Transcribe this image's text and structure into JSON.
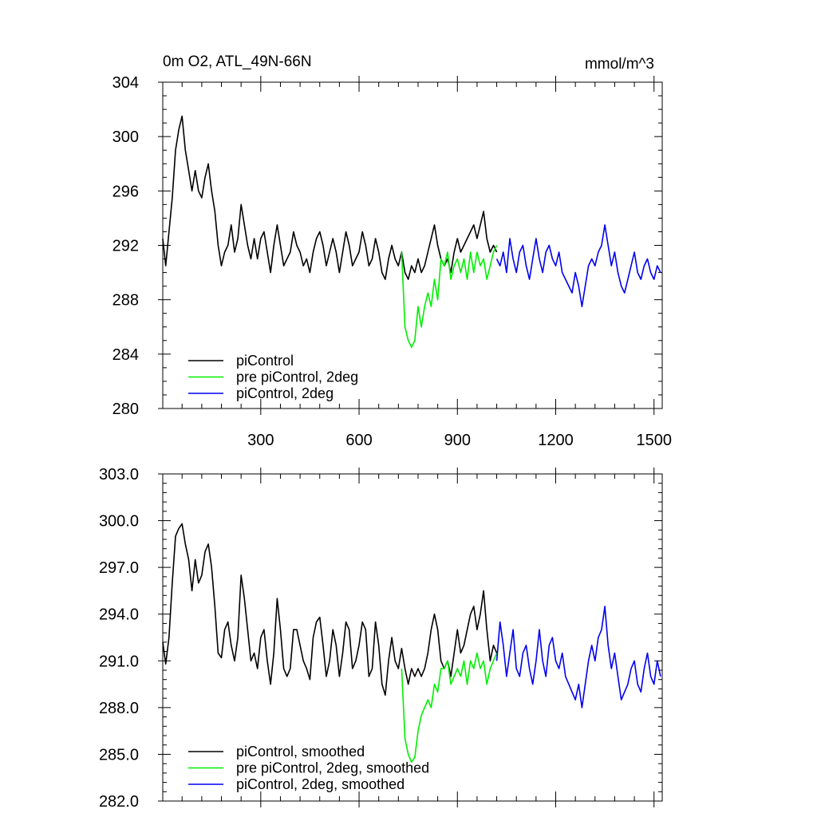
{
  "chart_data": [
    {
      "type": "line",
      "title_left": "0m O2, ATL_49N-66N",
      "title_right": "mmol/m^3",
      "xlabel": "",
      "ylabel": "",
      "xlim": [
        1,
        1525
      ],
      "ylim": [
        280,
        304
      ],
      "xticks": [
        300,
        600,
        900,
        1200,
        1500
      ],
      "xtick_labels": [
        "300",
        "600",
        "900",
        "1200",
        "1500"
      ],
      "yticks": [
        280,
        284,
        288,
        292,
        296,
        300,
        304
      ],
      "ytick_labels": [
        "280",
        "284",
        "288",
        "292",
        "296",
        "300",
        "304"
      ],
      "legend_position": "bottom-left",
      "series": [
        {
          "name": "piControl",
          "color": "#000000",
          "x": [
            1,
            10,
            20,
            30,
            40,
            50,
            60,
            70,
            80,
            90,
            100,
            110,
            120,
            130,
            140,
            150,
            160,
            170,
            180,
            190,
            200,
            210,
            220,
            230,
            240,
            250,
            260,
            270,
            280,
            290,
            300,
            310,
            320,
            330,
            340,
            350,
            360,
            370,
            380,
            390,
            400,
            410,
            420,
            430,
            440,
            450,
            460,
            470,
            480,
            490,
            500,
            510,
            520,
            530,
            540,
            550,
            560,
            570,
            580,
            590,
            600,
            610,
            620,
            630,
            640,
            650,
            660,
            670,
            680,
            690,
            700,
            710,
            720,
            730,
            740,
            750,
            760,
            770,
            780,
            790,
            800,
            810,
            820,
            830,
            840,
            850,
            860,
            870,
            880,
            890,
            900,
            910,
            920,
            930,
            940,
            950,
            960,
            970,
            980,
            990,
            1000,
            1010,
            1020
          ],
          "y": [
            292.5,
            290.5,
            293.0,
            295.5,
            299.0,
            300.5,
            301.5,
            299.0,
            297.5,
            296.0,
            297.5,
            296.0,
            295.5,
            297.0,
            298.0,
            296.0,
            294.5,
            292.0,
            290.5,
            291.5,
            292.0,
            293.5,
            291.5,
            292.5,
            295.0,
            293.5,
            292.0,
            291.0,
            292.5,
            291.0,
            292.5,
            293.0,
            291.5,
            290.0,
            292.0,
            293.5,
            292.0,
            290.5,
            291.0,
            291.5,
            293.0,
            292.0,
            291.5,
            290.5,
            291.0,
            290.0,
            291.5,
            292.5,
            293.0,
            292.0,
            290.5,
            291.5,
            292.5,
            291.5,
            290.0,
            291.5,
            293.0,
            292.0,
            290.5,
            291.0,
            291.5,
            293.0,
            292.0,
            290.5,
            291.0,
            292.5,
            291.5,
            290.0,
            289.5,
            291.0,
            292.0,
            291.0,
            290.5,
            291.5,
            290.0,
            289.5,
            290.5,
            290.0,
            291.0,
            290.0,
            290.5,
            291.5,
            292.5,
            293.5,
            292.0,
            291.0,
            290.5,
            291.0,
            290.0,
            291.5,
            292.5,
            291.5,
            292.0,
            292.5,
            293.0,
            293.5,
            292.5,
            293.5,
            294.5,
            292.5,
            291.5,
            292.0,
            291.5
          ]
        },
        {
          "name": "pre piControl, 2deg",
          "color": "#00ee00",
          "x": [
            730,
            740,
            750,
            760,
            770,
            780,
            790,
            800,
            810,
            820,
            830,
            840,
            850,
            860,
            870,
            880,
            890,
            900,
            910,
            920,
            930,
            940,
            950,
            960,
            970,
            980,
            990,
            1000,
            1010,
            1020
          ],
          "y": [
            291.5,
            286.0,
            285.0,
            284.5,
            285.0,
            287.5,
            286.0,
            287.5,
            288.5,
            287.5,
            289.5,
            288.0,
            291.0,
            290.5,
            291.5,
            289.5,
            290.5,
            291.0,
            290.0,
            291.0,
            289.5,
            291.5,
            290.0,
            291.5,
            290.5,
            291.0,
            289.5,
            290.5,
            291.5,
            292.0
          ]
        },
        {
          "name": "piControl, 2deg",
          "color": "#0000ee",
          "x": [
            1020,
            1030,
            1040,
            1050,
            1060,
            1070,
            1080,
            1090,
            1100,
            1110,
            1120,
            1130,
            1140,
            1150,
            1160,
            1170,
            1180,
            1190,
            1200,
            1210,
            1220,
            1230,
            1240,
            1250,
            1260,
            1270,
            1280,
            1290,
            1300,
            1310,
            1320,
            1330,
            1340,
            1350,
            1360,
            1370,
            1380,
            1390,
            1400,
            1410,
            1420,
            1430,
            1440,
            1450,
            1460,
            1470,
            1480,
            1490,
            1500,
            1510,
            1520
          ],
          "y": [
            291.0,
            290.5,
            291.5,
            290.0,
            292.5,
            291.0,
            290.0,
            291.5,
            292.0,
            290.5,
            289.5,
            291.0,
            292.5,
            291.0,
            290.0,
            291.5,
            292.0,
            291.0,
            290.5,
            291.5,
            290.0,
            289.5,
            289.0,
            288.5,
            290.0,
            289.0,
            287.5,
            289.0,
            290.5,
            291.0,
            290.5,
            291.5,
            292.0,
            293.5,
            292.0,
            290.5,
            291.5,
            290.0,
            289.0,
            288.5,
            289.5,
            290.5,
            291.5,
            290.0,
            289.5,
            290.5,
            291.0,
            290.0,
            289.5,
            290.5,
            290.0
          ]
        }
      ]
    },
    {
      "type": "line",
      "xlabel": "",
      "ylabel": "",
      "xlim": [
        1,
        1525
      ],
      "ylim": [
        282,
        303
      ],
      "xticks": [
        300,
        600,
        900,
        1200,
        1500
      ],
      "yticks": [
        282,
        285,
        288,
        291,
        294,
        297,
        300,
        303
      ],
      "ytick_labels": [
        "282.0",
        "285.0",
        "288.0",
        "291.0",
        "294.0",
        "297.0",
        "300.0",
        "303.0"
      ],
      "legend_position": "bottom-left",
      "series": [
        {
          "name": "piControl, smoothed",
          "color": "#000000",
          "x": [
            1,
            10,
            20,
            30,
            40,
            50,
            60,
            70,
            80,
            90,
            100,
            110,
            120,
            130,
            140,
            150,
            160,
            170,
            180,
            190,
            200,
            210,
            220,
            230,
            240,
            250,
            260,
            270,
            280,
            290,
            300,
            310,
            320,
            330,
            340,
            350,
            360,
            370,
            380,
            390,
            400,
            410,
            420,
            430,
            440,
            450,
            460,
            470,
            480,
            490,
            500,
            510,
            520,
            530,
            540,
            550,
            560,
            570,
            580,
            590,
            600,
            610,
            620,
            630,
            640,
            650,
            660,
            670,
            680,
            690,
            700,
            710,
            720,
            730,
            740,
            750,
            760,
            770,
            780,
            790,
            800,
            810,
            820,
            830,
            840,
            850,
            860,
            870,
            880,
            890,
            900,
            910,
            920,
            930,
            940,
            950,
            960,
            970,
            980,
            990,
            1000,
            1010,
            1020
          ],
          "y": [
            292.2,
            290.8,
            292.5,
            296.0,
            299.0,
            299.5,
            299.8,
            298.5,
            297.5,
            295.5,
            297.5,
            296.0,
            296.5,
            298.0,
            298.5,
            297.0,
            294.5,
            291.5,
            291.2,
            293.0,
            293.5,
            292.0,
            291.0,
            292.5,
            296.5,
            295.0,
            293.0,
            291.0,
            291.5,
            290.5,
            292.5,
            293.0,
            291.0,
            289.5,
            291.5,
            295.0,
            293.0,
            290.5,
            290.0,
            290.5,
            293.0,
            293.0,
            292.0,
            291.0,
            290.5,
            289.8,
            292.5,
            293.5,
            293.8,
            292.0,
            290.0,
            291.0,
            293.0,
            292.0,
            290.0,
            291.5,
            293.5,
            293.0,
            290.5,
            291.0,
            292.0,
            293.5,
            293.0,
            290.0,
            290.5,
            293.5,
            292.0,
            289.5,
            288.8,
            291.0,
            292.5,
            291.0,
            290.5,
            291.8,
            290.5,
            289.5,
            290.5,
            290.0,
            290.5,
            290.0,
            290.5,
            291.5,
            293.0,
            294.0,
            293.0,
            291.0,
            290.5,
            291.0,
            290.0,
            291.5,
            293.0,
            291.5,
            292.0,
            293.0,
            294.0,
            294.5,
            293.0,
            294.0,
            295.5,
            293.0,
            291.0,
            292.0,
            291.5
          ]
        },
        {
          "name": "pre piControl, 2deg, smoothed",
          "color": "#00ee00",
          "x": [
            730,
            740,
            750,
            760,
            770,
            780,
            790,
            800,
            810,
            820,
            830,
            840,
            850,
            860,
            870,
            880,
            890,
            900,
            910,
            920,
            930,
            940,
            950,
            960,
            970,
            980,
            990,
            1000,
            1010,
            1020
          ],
          "y": [
            290.5,
            286.0,
            285.0,
            284.5,
            284.8,
            286.5,
            287.5,
            288.0,
            288.5,
            288.0,
            289.5,
            289.0,
            290.5,
            290.5,
            291.0,
            289.5,
            290.0,
            290.5,
            290.0,
            291.0,
            289.5,
            291.0,
            290.5,
            291.5,
            290.5,
            291.0,
            289.5,
            290.5,
            291.0,
            291.5
          ]
        },
        {
          "name": "piControl, 2deg, smoothed",
          "color": "#0000ee",
          "x": [
            1020,
            1030,
            1040,
            1050,
            1060,
            1070,
            1080,
            1090,
            1100,
            1110,
            1120,
            1130,
            1140,
            1150,
            1160,
            1170,
            1180,
            1190,
            1200,
            1210,
            1220,
            1230,
            1240,
            1250,
            1260,
            1270,
            1280,
            1290,
            1300,
            1310,
            1320,
            1330,
            1340,
            1350,
            1360,
            1370,
            1380,
            1390,
            1400,
            1410,
            1420,
            1430,
            1440,
            1450,
            1460,
            1470,
            1480,
            1490,
            1500,
            1510,
            1520
          ],
          "y": [
            291.0,
            293.5,
            292.0,
            290.0,
            291.5,
            293.0,
            290.5,
            290.0,
            291.5,
            292.0,
            290.5,
            289.5,
            291.0,
            293.0,
            291.0,
            290.0,
            292.0,
            292.5,
            291.0,
            290.5,
            291.5,
            290.0,
            289.5,
            289.0,
            288.5,
            289.5,
            288.0,
            289.5,
            291.0,
            292.0,
            291.0,
            292.5,
            293.0,
            294.5,
            292.0,
            290.5,
            291.5,
            290.0,
            288.5,
            289.0,
            289.5,
            290.5,
            291.0,
            289.5,
            289.0,
            290.5,
            291.5,
            290.0,
            289.5,
            291.0,
            290.0
          ]
        }
      ]
    }
  ]
}
